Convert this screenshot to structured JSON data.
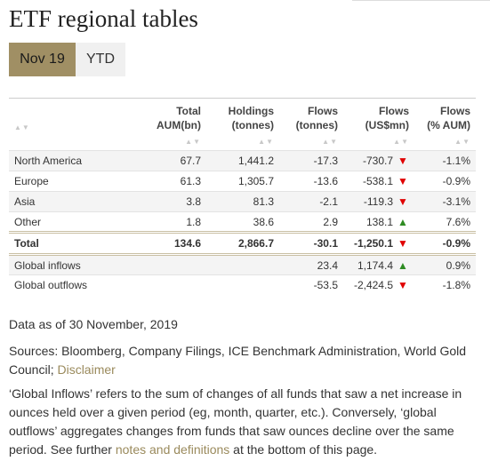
{
  "page": {
    "title": "ETF regional tables"
  },
  "tabs": [
    {
      "label": "Nov 19",
      "active": true
    },
    {
      "label": "YTD",
      "active": false
    }
  ],
  "table": {
    "headers": [
      {
        "line1": "",
        "line2": ""
      },
      {
        "line1": "Total",
        "line2": "AUM(bn)"
      },
      {
        "line1": "Holdings",
        "line2": "(tonnes)"
      },
      {
        "line1": "Flows",
        "line2": "(tonnes)"
      },
      {
        "line1": "Flows",
        "line2": "(US$mn)"
      },
      {
        "line1": "Flows",
        "line2": "(% AUM)"
      }
    ],
    "sort_glyph": "▲▼",
    "rows": [
      {
        "region": "North America",
        "aum": "67.7",
        "holdings": "1,441.2",
        "flows_t": "-17.3",
        "flows_usd": "-730.7",
        "dir": "down",
        "flows_pct": "-1.1%"
      },
      {
        "region": "Europe",
        "aum": "61.3",
        "holdings": "1,305.7",
        "flows_t": "-13.6",
        "flows_usd": "-538.1",
        "dir": "down",
        "flows_pct": "-0.9%"
      },
      {
        "region": "Asia",
        "aum": "3.8",
        "holdings": "81.3",
        "flows_t": "-2.1",
        "flows_usd": "-119.3",
        "dir": "down",
        "flows_pct": "-3.1%"
      },
      {
        "region": "Other",
        "aum": "1.8",
        "holdings": "38.6",
        "flows_t": "2.9",
        "flows_usd": "138.1",
        "dir": "up",
        "flows_pct": "7.6%"
      }
    ],
    "total": {
      "region": "Total",
      "aum": "134.6",
      "holdings": "2,866.7",
      "flows_t": "-30.1",
      "flows_usd": "-1,250.1",
      "dir": "down",
      "flows_pct": "-0.9%"
    },
    "global": [
      {
        "region": "Global inflows",
        "aum": "",
        "holdings": "",
        "flows_t": "23.4",
        "flows_usd": "1,174.4",
        "dir": "up",
        "flows_pct": "0.9%"
      },
      {
        "region": "Global outflows",
        "aum": "",
        "holdings": "",
        "flows_t": "-53.5",
        "flows_usd": "-2,424.5",
        "dir": "down",
        "flows_pct": "-1.8%"
      }
    ],
    "arrow_up": "▲",
    "arrow_down": "▼",
    "colors": {
      "negative": "#e00000",
      "positive_arrow": "#2e8b22",
      "accent": "#a08f64"
    }
  },
  "notes": {
    "date": "Data as of 30 November, 2019",
    "sources_prefix": "Sources: Bloomberg, Company Filings, ICE Benchmark Administration, World Gold Council; ",
    "disclaimer_link": "Disclaimer",
    "defs_prefix": "‘Global Inflows’ refers to the sum of changes of all funds that saw a net increase in ounces held over a given period (eg, month, quarter, etc.). Conversely, ‘global outflows’ aggregates changes from funds that saw ounces decline over the same period. See further ",
    "defs_link": "notes and definitions",
    "defs_suffix": " at the bottom of this page."
  }
}
